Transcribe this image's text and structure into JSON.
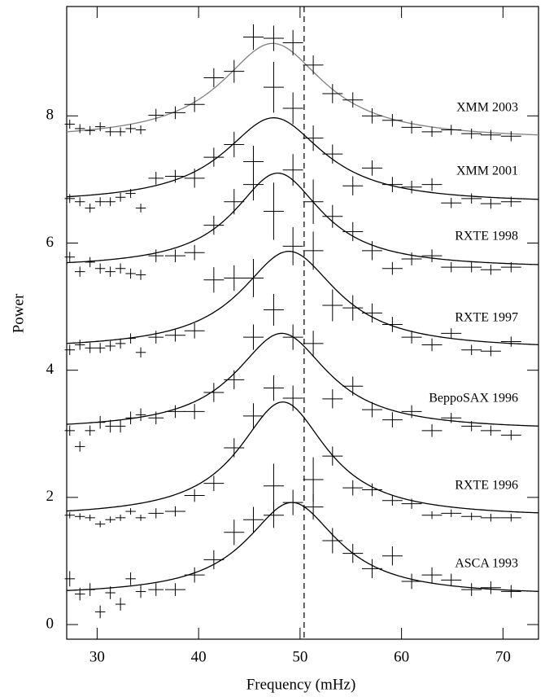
{
  "chart_data": {
    "type": "line",
    "x_label": "Frequency (mHz)",
    "y_label": "Power",
    "xlim": [
      27,
      73.5
    ],
    "ylim": [
      -0.23,
      9.72
    ],
    "xticks": [
      30,
      40,
      50,
      60,
      70
    ],
    "yticks": [
      0,
      2,
      4,
      6,
      8
    ],
    "vline": 50.4,
    "x": [
      27.3,
      28.3,
      29.3,
      30.3,
      31.3,
      32.3,
      33.3,
      34.3,
      35.8,
      37.7,
      39.6,
      41.5,
      43.5,
      45.4,
      47.4,
      49.3,
      51.3,
      53.2,
      55.2,
      57.1,
      59.1,
      61.0,
      63.0,
      64.9,
      66.9,
      68.8,
      70.8
    ],
    "xerr": [
      0.5,
      0.5,
      0.5,
      0.5,
      0.5,
      0.5,
      0.5,
      0.5,
      0.75,
      1,
      1,
      1,
      1,
      1,
      1,
      1,
      1,
      1,
      1,
      1,
      1,
      1,
      1,
      1,
      1,
      1,
      1
    ],
    "series": [
      {
        "name": "XMM 2003",
        "color": "#808080",
        "values": [
          7.87,
          7.8,
          7.77,
          7.83,
          7.75,
          7.75,
          7.8,
          7.78,
          8.01,
          8.05,
          8.18,
          8.6,
          8.7,
          9.24,
          9.22,
          9.15,
          8.8,
          8.35,
          8.25,
          8.0,
          7.93,
          7.82,
          7.75,
          7.78,
          7.72,
          7.7,
          7.68
        ],
        "yerr": [
          0.07,
          0.07,
          0.07,
          0.07,
          0.07,
          0.07,
          0.07,
          0.07,
          0.1,
          0.1,
          0.12,
          0.15,
          0.18,
          0.2,
          0.2,
          0.2,
          0.15,
          0.15,
          0.12,
          0.12,
          0.1,
          0.1,
          0.08,
          0.08,
          0.08,
          0.08,
          0.08
        ],
        "fit": {
          "baseline": 7.62,
          "amplitude": 1.52,
          "center": 47.3,
          "width": 6.2
        }
      },
      {
        "name": "XMM 2001",
        "color": "#000000",
        "values": [
          6.7,
          6.65,
          6.55,
          6.65,
          6.65,
          6.72,
          6.78,
          6.55,
          7.02,
          7.05,
          7.02,
          7.35,
          7.55,
          7.28,
          8.45,
          8.12,
          7.65,
          7.4,
          6.9,
          7.18,
          6.92,
          6.88,
          6.92,
          6.63,
          6.7,
          6.62,
          6.65
        ],
        "yerr": [
          0.07,
          0.07,
          0.07,
          0.07,
          0.07,
          0.07,
          0.07,
          0.07,
          0.1,
          0.1,
          0.15,
          0.15,
          0.2,
          0.25,
          0.4,
          0.25,
          0.2,
          0.15,
          0.15,
          0.12,
          0.12,
          0.1,
          0.1,
          0.08,
          0.08,
          0.08,
          0.08
        ],
        "fit": {
          "baseline": 6.62,
          "amplitude": 1.35,
          "center": 47.4,
          "width": 6.0
        }
      },
      {
        "name": "RXTE 1998",
        "color": "#000000",
        "values": [
          5.78,
          5.55,
          5.7,
          5.6,
          5.55,
          5.6,
          5.52,
          5.5,
          5.8,
          5.8,
          5.85,
          6.28,
          6.65,
          6.92,
          6.5,
          7.15,
          6.65,
          6.42,
          6.18,
          5.88,
          5.6,
          5.75,
          5.8,
          5.62,
          5.62,
          5.58,
          5.62
        ],
        "yerr": [
          0.08,
          0.08,
          0.08,
          0.08,
          0.08,
          0.08,
          0.08,
          0.08,
          0.1,
          0.1,
          0.12,
          0.15,
          0.2,
          0.25,
          0.45,
          0.25,
          0.35,
          0.18,
          0.15,
          0.15,
          0.1,
          0.1,
          0.1,
          0.08,
          0.08,
          0.08,
          0.08
        ],
        "fit": {
          "baseline": 5.6,
          "amplitude": 1.5,
          "center": 47.8,
          "width": 5.3
        }
      },
      {
        "name": "RXTE 1997",
        "color": "#000000",
        "values": [
          4.32,
          4.4,
          4.35,
          4.35,
          4.38,
          4.42,
          4.5,
          4.28,
          4.52,
          4.55,
          4.62,
          5.42,
          5.45,
          5.45,
          4.95,
          5.95,
          5.88,
          5.02,
          4.98,
          4.9,
          4.72,
          4.52,
          4.4,
          4.58,
          4.32,
          4.3,
          4.45
        ],
        "yerr": [
          0.08,
          0.08,
          0.08,
          0.08,
          0.08,
          0.08,
          0.08,
          0.08,
          0.1,
          0.1,
          0.12,
          0.2,
          0.2,
          0.3,
          0.25,
          0.3,
          0.3,
          0.25,
          0.2,
          0.15,
          0.12,
          0.1,
          0.1,
          0.08,
          0.08,
          0.08,
          0.08
        ],
        "fit": {
          "baseline": 4.32,
          "amplitude": 1.55,
          "center": 48.9,
          "width": 5.8
        }
      },
      {
        "name": "BeppoSAX 1996",
        "color": "#000000",
        "values": [
          3.05,
          2.8,
          3.05,
          3.18,
          3.12,
          3.12,
          3.25,
          3.3,
          3.25,
          3.35,
          3.35,
          3.65,
          3.85,
          4.52,
          3.72,
          4.52,
          4.42,
          3.55,
          3.75,
          3.38,
          3.22,
          3.35,
          3.05,
          3.25,
          3.12,
          3.05,
          2.98
        ],
        "yerr": [
          0.08,
          0.08,
          0.08,
          0.1,
          0.1,
          0.1,
          0.1,
          0.1,
          0.1,
          0.1,
          0.12,
          0.15,
          0.15,
          0.2,
          0.2,
          0.2,
          0.2,
          0.15,
          0.15,
          0.12,
          0.12,
          0.1,
          0.1,
          0.08,
          0.08,
          0.08,
          0.08
        ],
        "fit": {
          "baseline": 3.05,
          "amplitude": 1.53,
          "center": 48.2,
          "width": 5.6
        }
      },
      {
        "name": "RXTE 1996",
        "color": "#000000",
        "values": [
          1.72,
          1.7,
          1.68,
          1.58,
          1.65,
          1.68,
          1.78,
          1.68,
          1.75,
          1.78,
          2.03,
          2.22,
          2.78,
          3.28,
          2.18,
          3.56,
          2.28,
          2.65,
          2.15,
          2.12,
          1.95,
          1.9,
          1.72,
          1.75,
          1.7,
          1.68,
          1.68
        ],
        "yerr": [
          0.05,
          0.05,
          0.05,
          0.05,
          0.05,
          0.05,
          0.05,
          0.05,
          0.08,
          0.08,
          0.1,
          0.12,
          0.15,
          0.2,
          0.35,
          0.2,
          0.35,
          0.15,
          0.12,
          0.1,
          0.08,
          0.08,
          0.06,
          0.06,
          0.06,
          0.06,
          0.06
        ],
        "fit": {
          "baseline": 1.68,
          "amplitude": 1.82,
          "center": 48.3,
          "width": 5.3
        }
      },
      {
        "name": "ASCA 1993",
        "color": "#000000",
        "values": [
          0.72,
          0.48,
          0.55,
          0.2,
          0.5,
          0.32,
          0.72,
          0.52,
          0.55,
          0.55,
          0.78,
          1.02,
          1.45,
          1.65,
          1.72,
          1.92,
          1.85,
          1.32,
          1.12,
          0.88,
          1.08,
          0.68,
          0.78,
          0.7,
          0.55,
          0.58,
          0.52
        ],
        "yerr": [
          0.12,
          0.1,
          0.1,
          0.1,
          0.1,
          0.1,
          0.1,
          0.1,
          0.1,
          0.1,
          0.12,
          0.15,
          0.2,
          0.2,
          0.2,
          0.2,
          0.2,
          0.2,
          0.15,
          0.15,
          0.15,
          0.12,
          0.12,
          0.1,
          0.1,
          0.1,
          0.1
        ],
        "fit": {
          "baseline": 0.45,
          "amplitude": 1.47,
          "center": 49.2,
          "width": 5.5
        }
      }
    ]
  }
}
